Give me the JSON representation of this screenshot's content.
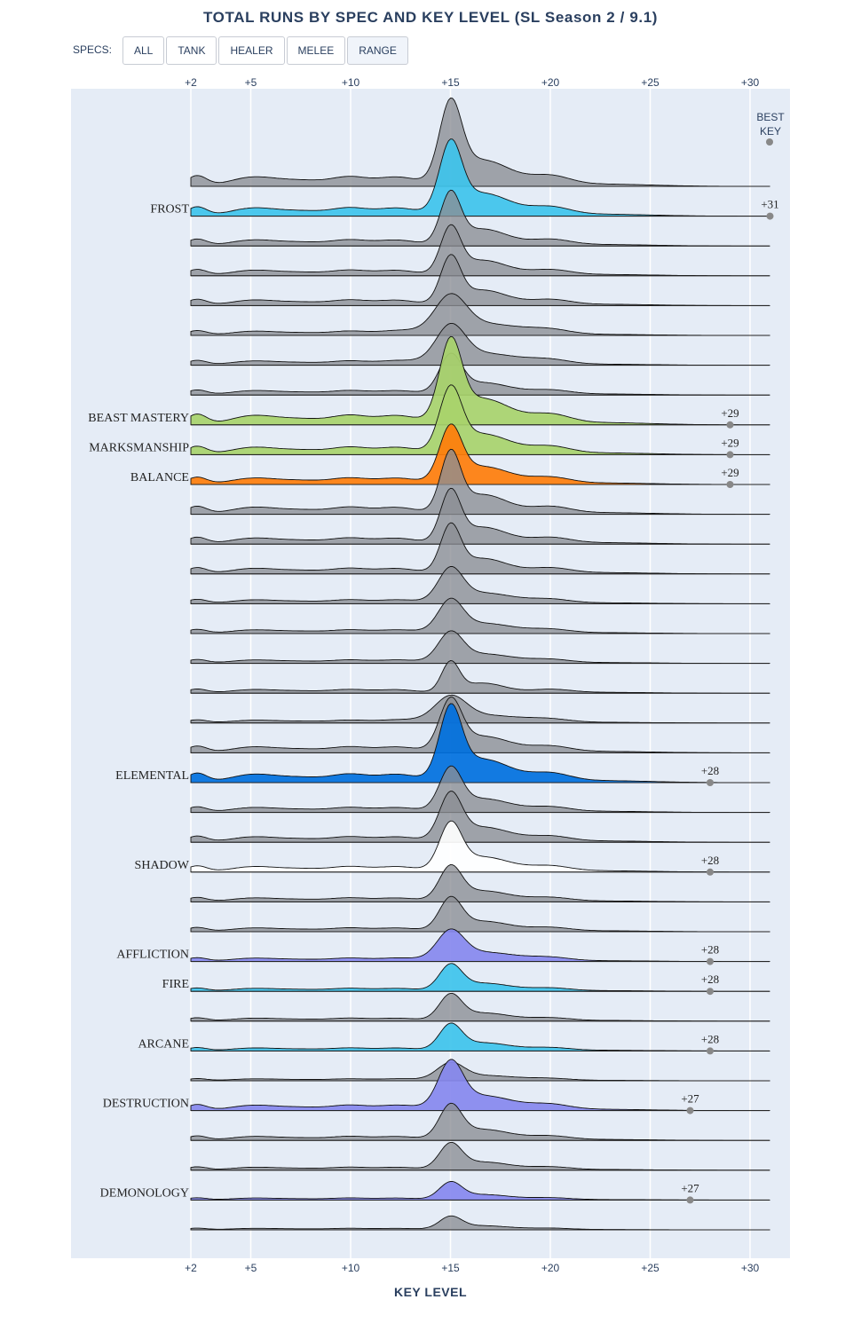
{
  "title": "TOTAL RUNS BY SPEC AND KEY LEVEL (SL Season 2 / 9.1)",
  "filters": {
    "label": "SPECS:",
    "buttons": [
      {
        "label": "ALL",
        "active": false
      },
      {
        "label": "TANK",
        "active": false
      },
      {
        "label": "HEALER",
        "active": false
      },
      {
        "label": "MELEE",
        "active": false
      },
      {
        "label": "RANGE",
        "active": true
      }
    ]
  },
  "chart_data": {
    "type": "ridgeline",
    "xlabel": "KEY LEVEL",
    "xlim": [
      2,
      31
    ],
    "xticks": [
      2,
      5,
      10,
      15,
      20,
      25,
      30
    ],
    "xtick_labels": [
      "+2",
      "+5",
      "+10",
      "+15",
      "+20",
      "+25",
      "+30"
    ],
    "best_key_header": [
      "BEST",
      "KEY"
    ],
    "colors": {
      "gray": "#8a8d93",
      "frost": "#3ec3ec",
      "hunter": "#a8d26b",
      "balance": "#ff7d0a",
      "elemental": "#0070de",
      "shadow": "#ffffff",
      "warlock": "#8788ee",
      "mage": "#3ec3ec",
      "background": "#e5ecf6"
    },
    "series": [
      {
        "name": "",
        "color": "gray",
        "peak": 0.95,
        "spread": 1.0
      },
      {
        "name": "FROST",
        "color": "frost",
        "peak": 0.83,
        "spread": 1.0,
        "best": 31,
        "best_label": "+31"
      },
      {
        "name": "",
        "color": "gray",
        "peak": 0.6,
        "spread": 0.9
      },
      {
        "name": "",
        "color": "gray",
        "peak": 0.55,
        "spread": 0.9
      },
      {
        "name": "",
        "color": "gray",
        "peak": 0.55,
        "spread": 0.9
      },
      {
        "name": "",
        "color": "gray",
        "peak": 0.45,
        "spread": 1.4
      },
      {
        "name": "",
        "color": "gray",
        "peak": 0.45,
        "spread": 1.3
      },
      {
        "name": "",
        "color": "gray",
        "peak": 0.45,
        "spread": 1.0
      },
      {
        "name": "BEAST MASTERY",
        "color": "hunter",
        "peak": 0.95,
        "spread": 1.0,
        "best": 29,
        "best_label": "+29"
      },
      {
        "name": "MARKSMANSHIP",
        "color": "hunter",
        "peak": 0.75,
        "spread": 1.0,
        "best": 29,
        "best_label": "+29"
      },
      {
        "name": "BALANCE",
        "color": "balance",
        "peak": 0.65,
        "spread": 1.0,
        "best": 29,
        "best_label": "+29"
      },
      {
        "name": "",
        "color": "gray",
        "peak": 0.7,
        "spread": 0.9
      },
      {
        "name": "",
        "color": "gray",
        "peak": 0.6,
        "spread": 0.9
      },
      {
        "name": "",
        "color": "gray",
        "peak": 0.55,
        "spread": 0.9
      },
      {
        "name": "",
        "color": "gray",
        "peak": 0.4,
        "spread": 1.1
      },
      {
        "name": "",
        "color": "gray",
        "peak": 0.38,
        "spread": 1.1
      },
      {
        "name": "",
        "color": "gray",
        "peak": 0.35,
        "spread": 1.1
      },
      {
        "name": "",
        "color": "gray",
        "peak": 0.35,
        "spread": 0.8
      },
      {
        "name": "",
        "color": "gray",
        "peak": 0.3,
        "spread": 1.4
      },
      {
        "name": "",
        "color": "gray",
        "peak": 0.6,
        "spread": 1.0
      },
      {
        "name": "ELEMENTAL",
        "color": "elemental",
        "peak": 0.85,
        "spread": 1.0,
        "best": 28,
        "best_label": "+28"
      },
      {
        "name": "",
        "color": "gray",
        "peak": 0.5,
        "spread": 1.0
      },
      {
        "name": "",
        "color": "gray",
        "peak": 0.55,
        "spread": 1.0
      },
      {
        "name": "SHADOW",
        "color": "shadow",
        "peak": 0.55,
        "spread": 1.0,
        "best": 28,
        "best_label": "+28"
      },
      {
        "name": "",
        "color": "gray",
        "peak": 0.4,
        "spread": 1.0
      },
      {
        "name": "",
        "color": "gray",
        "peak": 0.38,
        "spread": 1.0
      },
      {
        "name": "AFFLICTION",
        "color": "warlock",
        "peak": 0.35,
        "spread": 1.2,
        "best": 28,
        "best_label": "+28"
      },
      {
        "name": "FIRE",
        "color": "mage",
        "peak": 0.3,
        "spread": 1.0,
        "best": 28,
        "best_label": "+28"
      },
      {
        "name": "",
        "color": "gray",
        "peak": 0.3,
        "spread": 1.0
      },
      {
        "name": "ARCANE",
        "color": "mage",
        "peak": 0.3,
        "spread": 1.0,
        "best": 28,
        "best_label": "+28"
      },
      {
        "name": "",
        "color": "gray",
        "peak": 0.2,
        "spread": 1.2
      },
      {
        "name": "DESTRUCTION",
        "color": "warlock",
        "peak": 0.55,
        "spread": 1.1,
        "best": 27,
        "best_label": "+27"
      },
      {
        "name": "",
        "color": "gray",
        "peak": 0.4,
        "spread": 1.0
      },
      {
        "name": "",
        "color": "gray",
        "peak": 0.3,
        "spread": 1.0
      },
      {
        "name": "DEMONOLOGY",
        "color": "warlock",
        "peak": 0.2,
        "spread": 1.0,
        "best": 27,
        "best_label": "+27"
      },
      {
        "name": "",
        "color": "gray",
        "peak": 0.15,
        "spread": 1.0
      }
    ]
  }
}
